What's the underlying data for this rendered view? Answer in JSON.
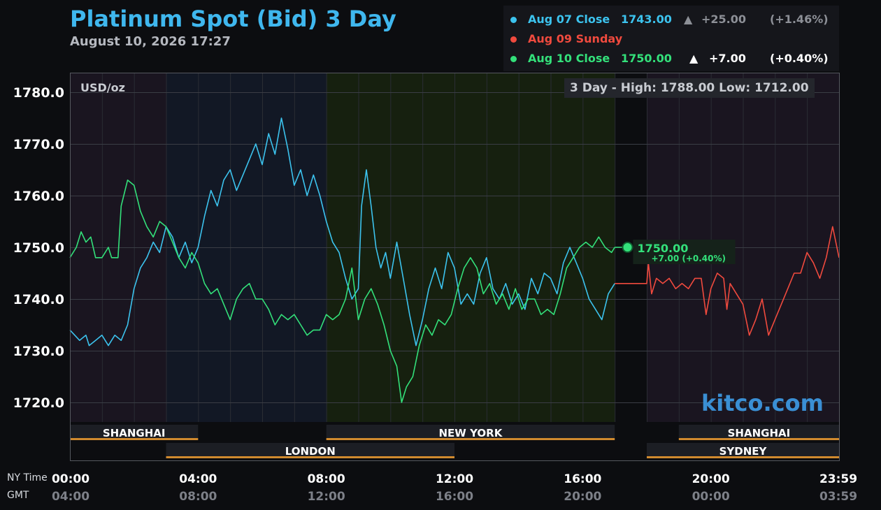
{
  "header": {
    "title": "Platinum Spot (Bid) 3 Day",
    "timestamp": "August 10, 2026 17:27"
  },
  "legend": [
    {
      "label": "Aug 07 Close",
      "price": "1743.00",
      "arrow": "▲",
      "change": "+25.00",
      "percent": "(+1.46%)",
      "color": "#3cc3ee",
      "text_color": "#3cc3ee",
      "change_color": "#8d9097"
    },
    {
      "label": "Aug 09 Sunday",
      "price": "",
      "arrow": "",
      "change": "",
      "percent": "",
      "color": "#f04a3e",
      "text_color": "#f04a3e",
      "change_color": "#8d9097"
    },
    {
      "label": "Aug 10 Close",
      "price": "1750.00",
      "arrow": "▲",
      "change": "+7.00",
      "percent": "(+0.40%)",
      "color": "#33e07a",
      "text_color": "#33e07a",
      "change_color": "#ffffff"
    }
  ],
  "annotations": {
    "unit": "USD/oz",
    "high_low": "3 Day - High: 1788.00  Low: 1712.00",
    "last_price": "1750.00",
    "last_change": "+7.00 (+0.40%)",
    "watermark": "kitco.com"
  },
  "axis_rows": {
    "ny": "NY Time",
    "gmt": "GMT"
  },
  "sessions": [
    {
      "name": "SHANGHAI",
      "start": 0,
      "end": 4,
      "row": 0
    },
    {
      "name": "LONDON",
      "start": 3,
      "end": 12,
      "row": 1
    },
    {
      "name": "NEW YORK",
      "start": 8,
      "end": 17,
      "row": 0
    },
    {
      "name": "SYDNEY",
      "start": 18,
      "end": 24,
      "row": 1
    },
    {
      "name": "SHANGHAI",
      "start": 19,
      "end": 24,
      "row": 0
    }
  ],
  "chart_data": {
    "type": "line",
    "title": "Platinum Spot (Bid) 3 Day",
    "ylabel": "USD/oz",
    "ylim": [
      1715,
      1784
    ],
    "xlim": [
      0,
      24
    ],
    "y_ticks": [
      1720,
      1730,
      1740,
      1750,
      1760,
      1770,
      1780
    ],
    "y_tick_labels": [
      "1720.0",
      "1730.0",
      "1740.0",
      "1750.0",
      "1760.0",
      "1770.0",
      "1780.0"
    ],
    "x_ticks": [
      {
        "ny": "00:00",
        "gmt": "04:00",
        "x": 0
      },
      {
        "ny": "04:00",
        "gmt": "08:00",
        "x": 4
      },
      {
        "ny": "08:00",
        "gmt": "12:00",
        "x": 8
      },
      {
        "ny": "12:00",
        "gmt": "16:00",
        "x": 12
      },
      {
        "ny": "16:00",
        "gmt": "20:00",
        "x": 16
      },
      {
        "ny": "20:00",
        "gmt": "00:00",
        "x": 20
      },
      {
        "ny": "23:59",
        "gmt": "03:59",
        "x": 24
      }
    ],
    "grid": true,
    "background_bands": [
      {
        "start": 0,
        "end": 3,
        "color": "#1a1520"
      },
      {
        "start": 3,
        "end": 8,
        "color": "#121825"
      },
      {
        "start": 8,
        "end": 17,
        "color": "#16200f"
      },
      {
        "start": 17,
        "end": 18,
        "color": "#0c0d10"
      },
      {
        "start": 18,
        "end": 24,
        "color": "#1a1520"
      }
    ],
    "series": [
      {
        "name": "Aug 07",
        "color": "#3cc3ee",
        "points": [
          [
            0,
            1734
          ],
          [
            0.3,
            1732
          ],
          [
            0.5,
            1733
          ],
          [
            0.6,
            1731
          ],
          [
            0.8,
            1732
          ],
          [
            1.0,
            1733
          ],
          [
            1.2,
            1731
          ],
          [
            1.4,
            1733
          ],
          [
            1.6,
            1732
          ],
          [
            1.8,
            1735
          ],
          [
            2.0,
            1742
          ],
          [
            2.2,
            1746
          ],
          [
            2.4,
            1748
          ],
          [
            2.6,
            1751
          ],
          [
            2.8,
            1749
          ],
          [
            3.0,
            1754
          ],
          [
            3.2,
            1752
          ],
          [
            3.4,
            1748
          ],
          [
            3.6,
            1751
          ],
          [
            3.8,
            1747
          ],
          [
            4.0,
            1750
          ],
          [
            4.2,
            1756
          ],
          [
            4.4,
            1761
          ],
          [
            4.6,
            1758
          ],
          [
            4.8,
            1763
          ],
          [
            5.0,
            1765
          ],
          [
            5.2,
            1761
          ],
          [
            5.4,
            1764
          ],
          [
            5.6,
            1767
          ],
          [
            5.8,
            1770
          ],
          [
            6.0,
            1766
          ],
          [
            6.2,
            1772
          ],
          [
            6.4,
            1768
          ],
          [
            6.6,
            1775
          ],
          [
            6.8,
            1769
          ],
          [
            7.0,
            1762
          ],
          [
            7.2,
            1765
          ],
          [
            7.4,
            1760
          ],
          [
            7.6,
            1764
          ],
          [
            7.8,
            1760
          ],
          [
            8.0,
            1755
          ],
          [
            8.2,
            1751
          ],
          [
            8.4,
            1749
          ],
          [
            8.6,
            1744
          ],
          [
            8.8,
            1740
          ],
          [
            9.0,
            1742
          ],
          [
            9.1,
            1758
          ],
          [
            9.25,
            1765
          ],
          [
            9.4,
            1758
          ],
          [
            9.55,
            1750
          ],
          [
            9.7,
            1746
          ],
          [
            9.85,
            1749
          ],
          [
            10.0,
            1744
          ],
          [
            10.2,
            1751
          ],
          [
            10.4,
            1744
          ],
          [
            10.6,
            1737
          ],
          [
            10.8,
            1731
          ],
          [
            11.0,
            1736
          ],
          [
            11.2,
            1742
          ],
          [
            11.4,
            1746
          ],
          [
            11.6,
            1742
          ],
          [
            11.8,
            1749
          ],
          [
            12.0,
            1746
          ],
          [
            12.2,
            1739
          ],
          [
            12.4,
            1741
          ],
          [
            12.6,
            1739
          ],
          [
            12.8,
            1745
          ],
          [
            13.0,
            1748
          ],
          [
            13.2,
            1742
          ],
          [
            13.4,
            1740
          ],
          [
            13.6,
            1743
          ],
          [
            13.8,
            1739
          ],
          [
            14.0,
            1741
          ],
          [
            14.2,
            1738
          ],
          [
            14.4,
            1744
          ],
          [
            14.6,
            1741
          ],
          [
            14.8,
            1745
          ],
          [
            15.0,
            1744
          ],
          [
            15.2,
            1741
          ],
          [
            15.4,
            1747
          ],
          [
            15.6,
            1750
          ],
          [
            15.8,
            1747
          ],
          [
            16.0,
            1744
          ],
          [
            16.2,
            1740
          ],
          [
            16.4,
            1738
          ],
          [
            16.6,
            1736
          ],
          [
            16.8,
            1741
          ],
          [
            17.0,
            1743
          ]
        ]
      },
      {
        "name": "Aug 09",
        "color": "#f04a3e",
        "points": [
          [
            17.0,
            1743
          ],
          [
            18.0,
            1743
          ],
          [
            18.05,
            1747
          ],
          [
            18.15,
            1741
          ],
          [
            18.3,
            1744
          ],
          [
            18.5,
            1743
          ],
          [
            18.7,
            1744
          ],
          [
            18.9,
            1742
          ],
          [
            19.1,
            1743
          ],
          [
            19.3,
            1742
          ],
          [
            19.5,
            1744
          ],
          [
            19.7,
            1744
          ],
          [
            19.85,
            1737
          ],
          [
            20.0,
            1742
          ],
          [
            20.2,
            1745
          ],
          [
            20.4,
            1744
          ],
          [
            20.5,
            1738
          ],
          [
            20.6,
            1743
          ],
          [
            20.8,
            1741
          ],
          [
            21.0,
            1739
          ],
          [
            21.2,
            1733
          ],
          [
            21.4,
            1736
          ],
          [
            21.6,
            1740
          ],
          [
            21.8,
            1733
          ],
          [
            22.0,
            1736
          ],
          [
            22.2,
            1739
          ],
          [
            22.4,
            1742
          ],
          [
            22.6,
            1745
          ],
          [
            22.8,
            1745
          ],
          [
            23.0,
            1749
          ],
          [
            23.2,
            1747
          ],
          [
            23.4,
            1744
          ],
          [
            23.6,
            1748
          ],
          [
            23.8,
            1754
          ],
          [
            24.0,
            1748
          ]
        ]
      },
      {
        "name": "Aug 10",
        "color": "#33e07a",
        "points": [
          [
            0,
            1748
          ],
          [
            0.2,
            1750
          ],
          [
            0.35,
            1753
          ],
          [
            0.5,
            1751
          ],
          [
            0.65,
            1752
          ],
          [
            0.8,
            1748
          ],
          [
            1.0,
            1748
          ],
          [
            1.2,
            1750
          ],
          [
            1.3,
            1748
          ],
          [
            1.5,
            1748
          ],
          [
            1.6,
            1758
          ],
          [
            1.8,
            1763
          ],
          [
            2.0,
            1762
          ],
          [
            2.2,
            1757
          ],
          [
            2.4,
            1754
          ],
          [
            2.6,
            1752
          ],
          [
            2.8,
            1755
          ],
          [
            3.0,
            1754
          ],
          [
            3.2,
            1751
          ],
          [
            3.4,
            1748
          ],
          [
            3.6,
            1746
          ],
          [
            3.8,
            1749
          ],
          [
            4.0,
            1747
          ],
          [
            4.2,
            1743
          ],
          [
            4.4,
            1741
          ],
          [
            4.6,
            1742
          ],
          [
            4.8,
            1739
          ],
          [
            5.0,
            1736
          ],
          [
            5.2,
            1740
          ],
          [
            5.4,
            1742
          ],
          [
            5.6,
            1743
          ],
          [
            5.8,
            1740
          ],
          [
            6.0,
            1740
          ],
          [
            6.2,
            1738
          ],
          [
            6.4,
            1735
          ],
          [
            6.6,
            1737
          ],
          [
            6.8,
            1736
          ],
          [
            7.0,
            1737
          ],
          [
            7.2,
            1735
          ],
          [
            7.4,
            1733
          ],
          [
            7.6,
            1734
          ],
          [
            7.8,
            1734
          ],
          [
            8.0,
            1737
          ],
          [
            8.2,
            1736
          ],
          [
            8.4,
            1737
          ],
          [
            8.6,
            1740
          ],
          [
            8.8,
            1746
          ],
          [
            9.0,
            1736
          ],
          [
            9.2,
            1740
          ],
          [
            9.4,
            1742
          ],
          [
            9.6,
            1739
          ],
          [
            9.8,
            1735
          ],
          [
            10.0,
            1730
          ],
          [
            10.2,
            1727
          ],
          [
            10.35,
            1720
          ],
          [
            10.5,
            1723
          ],
          [
            10.7,
            1725
          ],
          [
            10.9,
            1731
          ],
          [
            11.1,
            1735
          ],
          [
            11.3,
            1733
          ],
          [
            11.5,
            1736
          ],
          [
            11.7,
            1735
          ],
          [
            11.9,
            1737
          ],
          [
            12.1,
            1742
          ],
          [
            12.3,
            1746
          ],
          [
            12.5,
            1748
          ],
          [
            12.7,
            1746
          ],
          [
            12.9,
            1741
          ],
          [
            13.1,
            1743
          ],
          [
            13.3,
            1739
          ],
          [
            13.5,
            1741
          ],
          [
            13.7,
            1738
          ],
          [
            13.9,
            1742
          ],
          [
            14.1,
            1738
          ],
          [
            14.3,
            1740
          ],
          [
            14.5,
            1740
          ],
          [
            14.7,
            1737
          ],
          [
            14.9,
            1738
          ],
          [
            15.1,
            1737
          ],
          [
            15.3,
            1741
          ],
          [
            15.5,
            1746
          ],
          [
            15.7,
            1748
          ],
          [
            15.9,
            1750
          ],
          [
            16.1,
            1751
          ],
          [
            16.3,
            1750
          ],
          [
            16.5,
            1752
          ],
          [
            16.7,
            1750
          ],
          [
            16.9,
            1749
          ],
          [
            17.0,
            1750
          ]
        ]
      }
    ],
    "last_point": {
      "x": 17.4,
      "y": 1750
    }
  }
}
